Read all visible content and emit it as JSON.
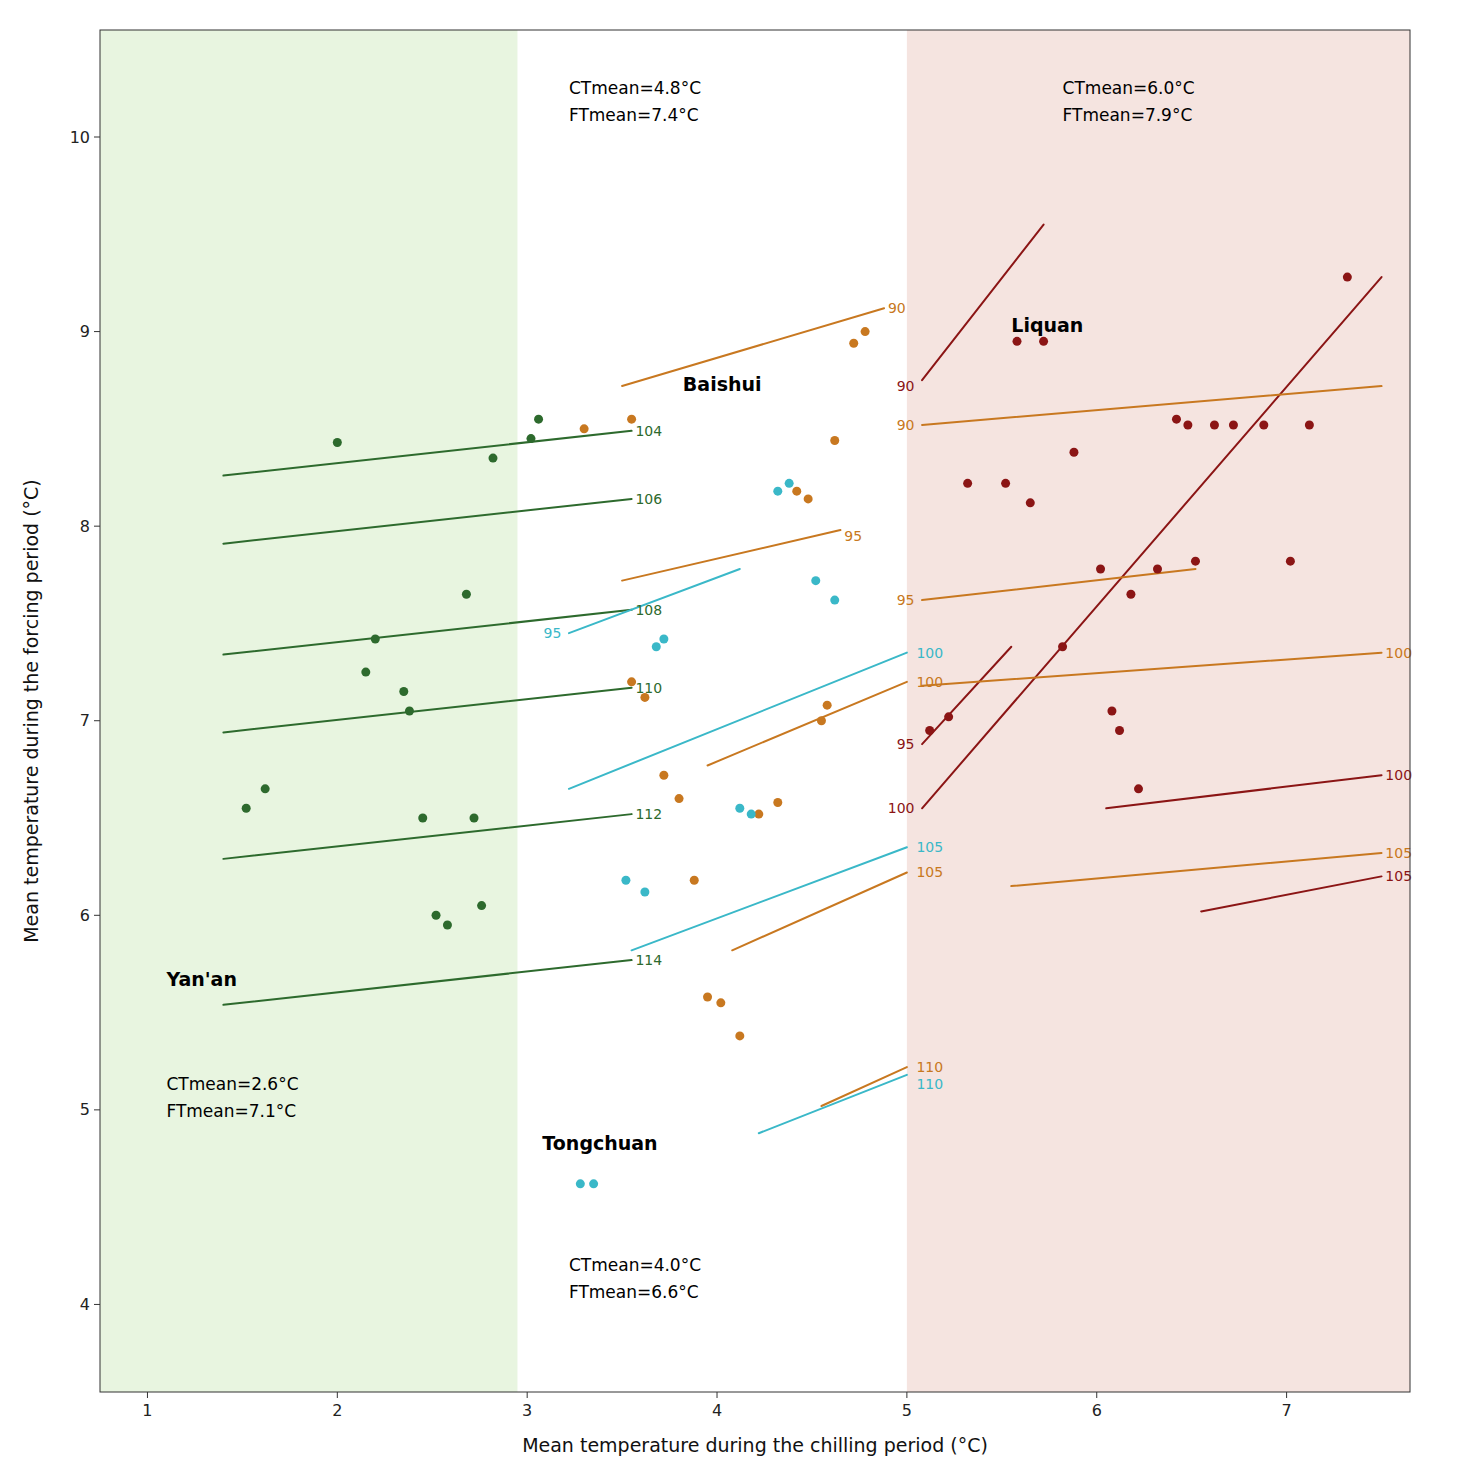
{
  "chart_data": {
    "type": "scatter",
    "xlabel": "Mean temperature during the chilling period (°C)",
    "ylabel": "Mean temperature during the forcing period (°C)",
    "xlim": [
      0.75,
      7.65
    ],
    "ylim": [
      3.55,
      10.55
    ],
    "xticks": [
      1,
      2,
      3,
      4,
      5,
      6,
      7
    ],
    "yticks": [
      4,
      5,
      6,
      7,
      8,
      9,
      10
    ],
    "grid": false,
    "regions": [
      {
        "from": 0.75,
        "to": 2.95,
        "color": "#e8f5e0"
      },
      {
        "from": 2.95,
        "to": 5.0,
        "color": "#ffffff"
      },
      {
        "from": 5.0,
        "to": 7.65,
        "color": "#f5e4e0"
      }
    ],
    "series": [
      {
        "name": "Yan'an",
        "type": "scatter",
        "color": "#2d6a2d",
        "label_x": 1.1,
        "label_y": 5.62,
        "x": [
          1.52,
          1.62,
          2.0,
          2.15,
          2.2,
          2.35,
          2.38,
          2.45,
          2.52,
          2.58,
          2.68,
          2.72,
          2.76,
          2.82,
          3.02,
          3.06
        ],
        "values": [
          6.55,
          6.65,
          8.43,
          7.25,
          7.42,
          7.15,
          7.05,
          6.5,
          6.0,
          5.95,
          7.65,
          6.5,
          6.05,
          8.35,
          8.45,
          8.55
        ]
      },
      {
        "type": "line",
        "color": "#2d6a2d",
        "label": "104",
        "label_x": 3.57,
        "label_y": 8.49,
        "x": [
          1.4,
          3.55
        ],
        "values": [
          8.26,
          8.49
        ]
      },
      {
        "type": "line",
        "color": "#2d6a2d",
        "label": "106",
        "label_x": 3.57,
        "label_y": 8.14,
        "x": [
          1.4,
          3.55
        ],
        "values": [
          7.91,
          8.14
        ]
      },
      {
        "type": "line",
        "color": "#2d6a2d",
        "label": "108",
        "label_x": 3.57,
        "label_y": 7.57,
        "x": [
          1.4,
          3.55
        ],
        "values": [
          7.34,
          7.57
        ]
      },
      {
        "type": "line",
        "color": "#2d6a2d",
        "label": "110",
        "label_x": 3.57,
        "label_y": 7.17,
        "x": [
          1.4,
          3.55
        ],
        "values": [
          6.94,
          7.17
        ]
      },
      {
        "type": "line",
        "color": "#2d6a2d",
        "label": "112",
        "label_x": 3.57,
        "label_y": 6.52,
        "x": [
          1.4,
          3.55
        ],
        "values": [
          6.29,
          6.52
        ]
      },
      {
        "type": "line",
        "color": "#2d6a2d",
        "label": "114",
        "label_x": 3.57,
        "label_y": 5.77,
        "x": [
          1.4,
          3.55
        ],
        "values": [
          5.54,
          5.77
        ]
      },
      {
        "name": "Baishui",
        "type": "scatter",
        "color": "#c87820",
        "label_x": 3.82,
        "label_y": 8.68,
        "x": [
          3.3,
          3.55,
          3.55,
          3.62,
          3.72,
          3.8,
          3.88,
          3.95,
          4.02,
          4.12,
          4.22,
          4.32,
          4.42,
          4.48,
          4.55,
          4.58,
          4.62,
          4.72,
          4.78
        ],
        "values": [
          8.5,
          8.55,
          7.2,
          7.12,
          6.72,
          6.6,
          6.18,
          5.58,
          5.55,
          5.38,
          6.52,
          6.58,
          8.18,
          8.14,
          7.0,
          7.08,
          8.44,
          8.94,
          9.0
        ]
      },
      {
        "type": "line",
        "color": "#c87820",
        "label": "90",
        "label_x": 4.9,
        "label_y": 9.12,
        "x": [
          3.5,
          4.88
        ],
        "values": [
          8.72,
          9.12
        ]
      },
      {
        "type": "line",
        "color": "#c87820",
        "label": "95",
        "label_x": 4.67,
        "label_y": 7.95,
        "x": [
          3.5,
          4.65
        ],
        "values": [
          7.72,
          7.98
        ]
      },
      {
        "type": "line",
        "color": "#c87820",
        "label": "100",
        "label_x": 5.05,
        "label_y": 7.2,
        "x": [
          3.95,
          5.0
        ],
        "values": [
          6.77,
          7.2
        ]
      },
      {
        "type": "line",
        "color": "#c87820",
        "label": "105",
        "label_x": 5.05,
        "label_y": 6.22,
        "x": [
          4.08,
          5.0
        ],
        "values": [
          5.82,
          6.22
        ]
      },
      {
        "type": "line",
        "color": "#c87820",
        "label": "110",
        "label_x": 5.05,
        "label_y": 5.22,
        "x": [
          4.55,
          5.0
        ],
        "values": [
          5.02,
          5.22
        ]
      },
      {
        "name": "Tongchuan",
        "type": "scatter",
        "color": "#3ab8c8",
        "label_x": 3.08,
        "label_y": 4.78,
        "x": [
          3.28,
          3.35,
          3.52,
          3.62,
          3.68,
          3.72,
          4.12,
          4.18,
          4.32,
          4.38,
          4.52,
          4.62
        ],
        "values": [
          4.62,
          4.62,
          6.18,
          6.12,
          7.38,
          7.42,
          6.55,
          6.52,
          8.18,
          8.22,
          7.72,
          7.62
        ]
      },
      {
        "type": "line",
        "color": "#3ab8c8",
        "label": "95",
        "label_x": 3.18,
        "label_y": 7.45,
        "x": [
          3.22,
          4.12
        ],
        "values": [
          7.45,
          7.78
        ]
      },
      {
        "type": "line",
        "color": "#3ab8c8",
        "label": "100",
        "label_x": 5.05,
        "label_y": 7.35,
        "x": [
          3.22,
          5.0
        ],
        "values": [
          6.65,
          7.35
        ]
      },
      {
        "type": "line",
        "color": "#3ab8c8",
        "label": "105",
        "label_x": 5.05,
        "label_y": 6.35,
        "x": [
          3.55,
          5.0
        ],
        "values": [
          5.82,
          6.35
        ]
      },
      {
        "type": "line",
        "color": "#3ab8c8",
        "label": "110",
        "label_x": 5.05,
        "label_y": 5.18,
        "x": [
          4.22,
          5.0
        ],
        "values": [
          4.88,
          5.18
        ]
      },
      {
        "name": "Liquan",
        "type": "scatter",
        "color": "#8b1515",
        "label_x": 5.55,
        "label_y": 8.98,
        "x": [
          5.12,
          5.22,
          5.32,
          5.52,
          5.58,
          5.65,
          5.72,
          5.82,
          5.88,
          6.02,
          6.08,
          6.12,
          6.18,
          6.22,
          6.32,
          6.42,
          6.48,
          6.52,
          6.62,
          6.72,
          6.88,
          7.02,
          7.12,
          7.32
        ],
        "values": [
          6.95,
          7.02,
          8.22,
          8.22,
          8.95,
          8.12,
          8.95,
          7.38,
          8.38,
          7.78,
          7.05,
          6.95,
          7.65,
          6.65,
          7.78,
          8.55,
          8.52,
          7.82,
          8.52,
          8.52,
          8.52,
          7.82,
          8.52,
          9.28
        ]
      },
      {
        "type": "line",
        "color": "#8b1515",
        "label": "90",
        "label_x": 5.04,
        "label_y": 8.72,
        "x": [
          5.08,
          5.72
        ],
        "values": [
          8.75,
          9.55
        ]
      },
      {
        "type": "line",
        "color": "#8b1515",
        "label": "95",
        "label_x": 5.04,
        "label_y": 6.88,
        "x": [
          5.08,
          5.55
        ],
        "values": [
          6.88,
          7.38
        ]
      },
      {
        "type": "line",
        "color": "#8b1515",
        "label": "100",
        "label_x": 5.04,
        "label_y": 6.55,
        "x": [
          5.08,
          7.5
        ],
        "values": [
          6.55,
          9.28
        ]
      },
      {
        "type": "line",
        "color": "#8b1515",
        "label": "100",
        "label_x": 7.52,
        "label_y": 6.72,
        "x": [
          6.05,
          7.5
        ],
        "values": [
          6.55,
          6.72
        ]
      },
      {
        "type": "line",
        "color": "#8b1515",
        "label": "105",
        "label_x": 7.52,
        "label_y": 6.2,
        "x": [
          6.55,
          7.5
        ],
        "values": [
          6.02,
          6.2
        ]
      },
      {
        "type": "line",
        "color": "#c87820",
        "label": "90",
        "label_x": 5.04,
        "label_y": 8.52,
        "x": [
          5.08,
          7.5
        ],
        "values": [
          8.52,
          8.72
        ]
      },
      {
        "type": "line",
        "color": "#c87820",
        "label": "95",
        "label_x": 5.04,
        "label_y": 7.62,
        "x": [
          5.08,
          6.52
        ],
        "values": [
          7.62,
          7.78
        ]
      },
      {
        "type": "line",
        "color": "#c87820",
        "label": "100",
        "label_x": 7.52,
        "label_y": 7.35,
        "x": [
          5.08,
          7.5
        ],
        "values": [
          7.18,
          7.35
        ]
      },
      {
        "type": "line",
        "color": "#c87820",
        "label": "105",
        "label_x": 7.52,
        "label_y": 6.32,
        "x": [
          5.55,
          7.5
        ],
        "values": [
          6.15,
          6.32
        ]
      }
    ],
    "annotations": [
      {
        "text": "CTmean=2.6°C\nFTmean=7.1°C",
        "x": 1.1,
        "y": 5.18
      },
      {
        "text": "CTmean=4.8°C\nFTmean=7.4°C",
        "x": 3.22,
        "y": 10.3
      },
      {
        "text": "CTmean=4.0°C\nFTmean=6.6°C",
        "x": 3.22,
        "y": 4.25
      },
      {
        "text": "CTmean=6.0°C\nFTmean=7.9°C",
        "x": 5.82,
        "y": 10.3
      }
    ]
  }
}
